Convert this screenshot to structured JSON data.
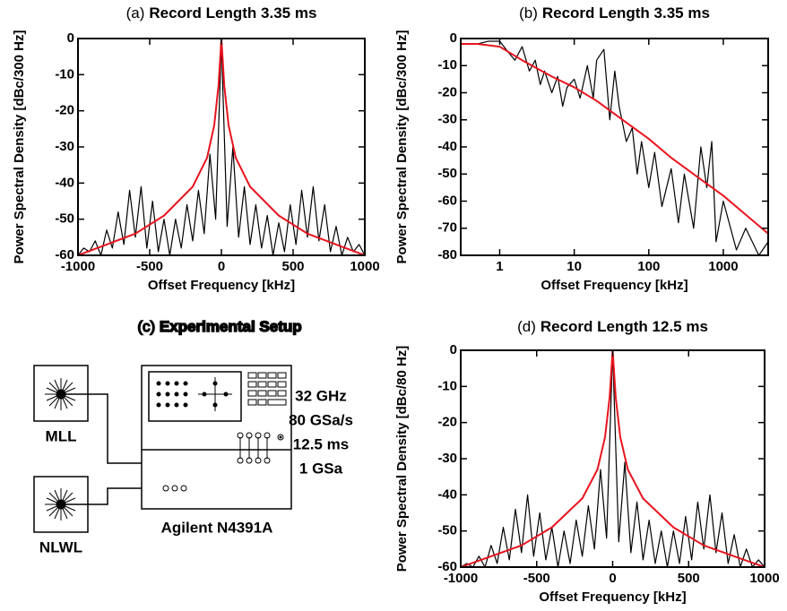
{
  "chart_data": [
    {
      "type": "line",
      "panel_label": "(a)",
      "title": "Record Length 3.35 ms",
      "xlabel": "Offset Frequency [kHz]",
      "ylabel": "Power Spectral Density [dBc/300 Hz]",
      "xscale": "linear",
      "xlim": [
        -1000,
        1000
      ],
      "xticks": [
        -1000,
        -500,
        0,
        500,
        1000
      ],
      "ylim": [
        -60,
        0
      ],
      "yticks": [
        0,
        -10,
        -20,
        -30,
        -40,
        -50,
        -60
      ],
      "series": [
        {
          "color": "#000000",
          "x": [
            -1000,
            -960,
            -920,
            -880,
            -840,
            -800,
            -760,
            -720,
            -680,
            -640,
            -600,
            -560,
            -520,
            -480,
            -440,
            -400,
            -360,
            -320,
            -280,
            -240,
            -200,
            -160,
            -120,
            -80,
            -40,
            0,
            40,
            80,
            120,
            160,
            200,
            240,
            280,
            320,
            360,
            400,
            440,
            480,
            520,
            560,
            600,
            640,
            680,
            720,
            760,
            800,
            840,
            880,
            920,
            960,
            1000
          ],
          "values": [
            -60,
            -58,
            -59,
            -56,
            -60,
            -53,
            -58,
            -48,
            -57,
            -42,
            -55,
            -41,
            -58,
            -45,
            -59,
            -50,
            -60,
            -50,
            -58,
            -46,
            -56,
            -42,
            -54,
            -32,
            -50,
            -1,
            -52,
            -30,
            -55,
            -41,
            -57,
            -46,
            -58,
            -49,
            -60,
            -51,
            -59,
            -46,
            -57,
            -42,
            -55,
            -41,
            -56,
            -46,
            -59,
            -52,
            -60,
            -55,
            -59,
            -57,
            -60
          ]
        },
        {
          "color": "#e8141e",
          "x": [
            -1000,
            -800,
            -600,
            -400,
            -200,
            -100,
            -50,
            -20,
            0,
            20,
            50,
            100,
            200,
            400,
            600,
            800,
            1000
          ],
          "values": [
            -60,
            -57,
            -54,
            -49,
            -41,
            -33,
            -24,
            -13,
            0,
            -13,
            -24,
            -33,
            -41,
            -49,
            -54,
            -57,
            -60
          ]
        }
      ]
    },
    {
      "type": "line",
      "panel_label": "(b)",
      "title": "Record Length 3.35 ms",
      "xlabel": "Offset Frequency [kHz]",
      "ylabel": "Power Spectral Density [dBc/300 Hz]",
      "xscale": "log",
      "xlim": [
        0.3,
        4000
      ],
      "xticks": [
        1,
        10,
        100,
        1000
      ],
      "ylim": [
        -80,
        0
      ],
      "yticks": [
        0,
        -10,
        -20,
        -30,
        -40,
        -50,
        -60,
        -70,
        -80
      ],
      "series": [
        {
          "color": "#000000",
          "x": [
            0.3,
            0.5,
            0.7,
            1,
            1.3,
            1.6,
            2,
            2.5,
            3,
            3.5,
            4,
            5,
            6,
            7,
            8,
            10,
            12,
            15,
            18,
            20,
            25,
            30,
            35,
            40,
            50,
            60,
            70,
            80,
            100,
            120,
            150,
            200,
            250,
            300,
            400,
            500,
            600,
            700,
            800,
            1000,
            1500,
            2000,
            3000,
            4000
          ],
          "values": [
            -2,
            -2,
            -1,
            -1,
            -5,
            -8,
            -3,
            -12,
            -8,
            -17,
            -12,
            -20,
            -14,
            -25,
            -18,
            -15,
            -22,
            -10,
            -22,
            -8,
            -4,
            -30,
            -12,
            -25,
            -38,
            -33,
            -50,
            -38,
            -55,
            -42,
            -62,
            -48,
            -68,
            -50,
            -70,
            -40,
            -55,
            -38,
            -75,
            -60,
            -78,
            -70,
            -80,
            -75
          ]
        },
        {
          "color": "#e8141e",
          "x": [
            0.3,
            0.5,
            1,
            2,
            5,
            10,
            20,
            50,
            100,
            200,
            500,
            1000,
            2000,
            4000
          ],
          "values": [
            -2,
            -2,
            -3,
            -8,
            -14,
            -18,
            -23,
            -31,
            -37,
            -44,
            -52,
            -58,
            -65,
            -72
          ]
        }
      ]
    },
    {
      "type": "line",
      "panel_label": "(d)",
      "title": "Record Length 12.5 ms",
      "xlabel": "Offset Frequency [kHz]",
      "ylabel": "Power Spectral Density [dBc/80 Hz]",
      "xscale": "linear",
      "xlim": [
        -1000,
        1000
      ],
      "xticks": [
        -1000,
        -500,
        0,
        500,
        1000
      ],
      "ylim": [
        -60,
        0
      ],
      "yticks": [
        0,
        -10,
        -20,
        -30,
        -40,
        -50,
        -60
      ],
      "series": [
        {
          "color": "#000000",
          "x": [
            -1000,
            -960,
            -920,
            -880,
            -840,
            -800,
            -760,
            -720,
            -680,
            -640,
            -600,
            -560,
            -520,
            -480,
            -440,
            -400,
            -360,
            -320,
            -280,
            -240,
            -200,
            -160,
            -120,
            -80,
            -40,
            0,
            40,
            80,
            120,
            160,
            200,
            240,
            280,
            320,
            360,
            400,
            440,
            480,
            520,
            560,
            600,
            640,
            680,
            720,
            760,
            800,
            840,
            880,
            920,
            960,
            1000
          ],
          "values": [
            -60,
            -59,
            -60,
            -57,
            -60,
            -54,
            -59,
            -49,
            -58,
            -44,
            -56,
            -40,
            -57,
            -45,
            -58,
            -49,
            -60,
            -50,
            -59,
            -47,
            -57,
            -43,
            -55,
            -33,
            -52,
            0,
            -53,
            -31,
            -56,
            -42,
            -58,
            -47,
            -59,
            -50,
            -60,
            -50,
            -59,
            -46,
            -58,
            -42,
            -55,
            -40,
            -56,
            -45,
            -59,
            -51,
            -60,
            -55,
            -60,
            -58,
            -60
          ]
        },
        {
          "color": "#e8141e",
          "x": [
            -1000,
            -800,
            -600,
            -400,
            -200,
            -100,
            -50,
            -20,
            0,
            20,
            50,
            100,
            200,
            400,
            600,
            800,
            1000
          ],
          "values": [
            -60,
            -57,
            -54,
            -49,
            -41,
            -33,
            -24,
            -13,
            0,
            -13,
            -24,
            -33,
            -41,
            -49,
            -54,
            -57,
            -60
          ]
        }
      ]
    }
  ],
  "diagram": {
    "panel_label": "(c)",
    "title": "Experimental Setup",
    "sources": [
      "MLL",
      "NLWL"
    ],
    "instrument": "Agilent N4391A",
    "settings": [
      "32 GHz",
      "80 GSa/s",
      "12.5 ms",
      "1 GSa"
    ]
  }
}
